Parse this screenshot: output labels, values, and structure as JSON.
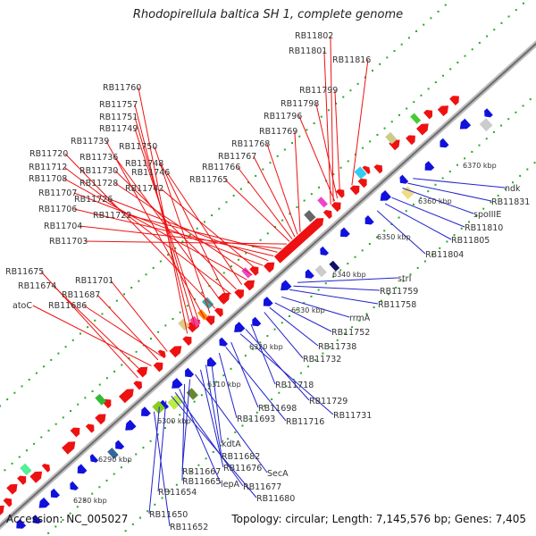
{
  "title": "Rhodopirellula baltica SH 1, complete genome",
  "footer": {
    "accession": "Accession: NC_005027",
    "summary": "Topology: circular; Length: 7,145,576 bp; Genes: 7,405"
  },
  "colors": {
    "forward": "#ee1111",
    "reverse": "#1111dd",
    "backbone": "#9a9a9a",
    "tick": "#22aa22",
    "forward_leader": "#ee1111",
    "reverse_leader": "#2222cc"
  },
  "scale_labels": [
    "6280 kbp",
    "6290 kbp",
    "6300 kbp",
    "6310 kbp",
    "6320 kbp",
    "6330 kbp",
    "6340 kbp",
    "6350 kbp",
    "6360 kbp",
    "6370 kbp"
  ],
  "labels_forward": [
    "RB11802",
    "RB11801",
    "RB11816",
    "RB11760",
    "RB11757",
    "RB11751",
    "RB11749",
    "RB11739",
    "RB11750",
    "RB11720",
    "RB11736",
    "RB11748",
    "RB11712",
    "RB11730",
    "RB11746",
    "RB11708",
    "RB11728",
    "RB11742",
    "RB11707",
    "RB11726",
    "RB11706",
    "RB11722",
    "RB11704",
    "RB11703",
    "RB11799",
    "RB11798",
    "RB11796",
    "RB11769",
    "RB11768",
    "RB11767",
    "RB11766",
    "RB11765",
    "RB11675",
    "RB11674",
    "RB11701",
    "RB11687",
    "atoC",
    "RB11686"
  ],
  "labels_reverse": [
    "ndk",
    "RB11831",
    "spoIIIE",
    "RB11810",
    "RB11805",
    "RB11804",
    "strI",
    "RB11759",
    "RB11758",
    "rrmA",
    "RB11752",
    "RB11738",
    "RB11732",
    "RB11718",
    "RB11729",
    "RB11731",
    "RB11698",
    "RB11716",
    "RB11693",
    "kdtA",
    "RB11682",
    "RB11676",
    "SecA",
    "RB11667",
    "RB11665",
    "lepA",
    "RB11677",
    "RB11680",
    "RB11654",
    "RB11650",
    "RB11652"
  ]
}
